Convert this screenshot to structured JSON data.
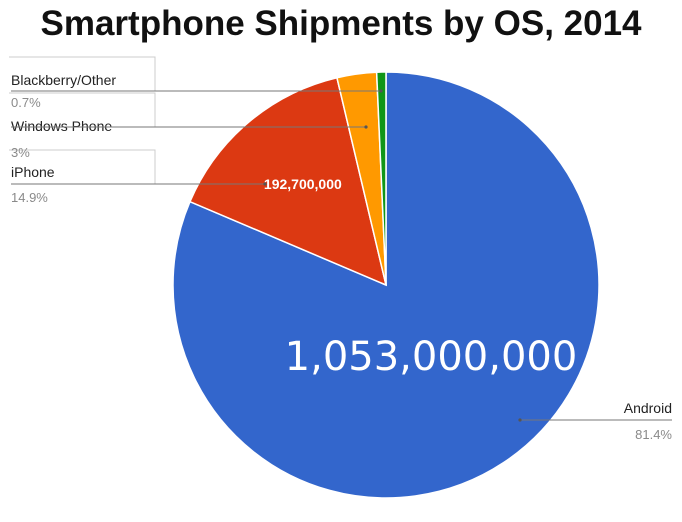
{
  "chart_data": {
    "type": "pie",
    "title": "Smartphone Shipments by OS, 2014",
    "legend_placement": "labels with leader lines (left and right)",
    "slices": [
      {
        "name": "Android",
        "percent_label": "81.4%",
        "percent": 81.4,
        "value_label": "1,053,000,000",
        "value": 1053000000,
        "color": "#3366cc"
      },
      {
        "name": "iPhone",
        "percent_label": "14.9%",
        "percent": 14.9,
        "value_label": "192,700,000",
        "value": 192700000,
        "color": "#dc3912"
      },
      {
        "name": "Windows Phone",
        "percent_label": "3%",
        "percent": 3.0,
        "value_label": "",
        "value": null,
        "color": "#ff9900"
      },
      {
        "name": "Blackberry/Other",
        "percent_label": "0.7%",
        "percent": 0.7,
        "value_label": "",
        "value": null,
        "color": "#109618"
      }
    ]
  }
}
